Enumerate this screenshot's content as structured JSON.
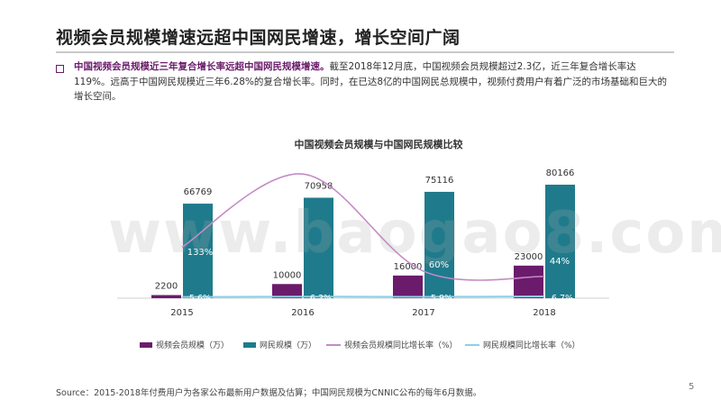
{
  "page": {
    "title": "视频会员规模增速远超中国网民增速，增长空间广阔",
    "summary_highlight": "中国视频会员规模近三年复合增长率远超中国网民规模增速。",
    "summary_rest": "截至2018年12月底，中国视频会员规模超过2.3亿，近三年复合增长率达119%。远高于中国网民规模近三年6.28%的复合增长率。同时，在已达8亿的中国网民总规模中，视频付费用户有着广泛的市场基础和巨大的增长空间。",
    "watermark": "www.baogao8.com",
    "source": "Source：2015-2018年付费用户为各家公布最新用户数据及估算；中国网民规模为CNNIC公布的每年6月数据。",
    "page_number": "5"
  },
  "colors": {
    "members": "#6b1b6b",
    "netizens": "#1f7b8c",
    "member_growth_line": "#c48bc6",
    "netizen_growth_line": "#8ed0e6",
    "bullet": "#6b1b6b"
  },
  "chart_data": {
    "type": "bar",
    "title": "中国视频会员规模与中国网民规模比较",
    "categories": [
      "2015",
      "2016",
      "2017",
      "2018"
    ],
    "series": [
      {
        "name": "视频会员规模（万）",
        "kind": "bar",
        "values": [
          2200,
          10000,
          16000,
          23000
        ],
        "labels": [
          "2200",
          "10000",
          "16000",
          "23000"
        ]
      },
      {
        "name": "网民规模（万）",
        "kind": "bar",
        "values": [
          66769,
          70958,
          75116,
          80166
        ],
        "labels": [
          "66769",
          "70958",
          "75116",
          "80166"
        ]
      },
      {
        "name": "视频会员规模同比增长率（%）",
        "kind": "line",
        "values": [
          133,
          355,
          60,
          44
        ],
        "labels": [
          "133%",
          "",
          "60%",
          "44%"
        ]
      },
      {
        "name": "网民规模同比增长率（%）",
        "kind": "line",
        "values": [
          5.6,
          6.3,
          5.9,
          6.7
        ],
        "labels": [
          "5.6%",
          "6.3%",
          "5.9%",
          "6.7%"
        ]
      }
    ],
    "ylim": [
      0,
      90000
    ],
    "legend_position": "bottom",
    "grid": false
  }
}
